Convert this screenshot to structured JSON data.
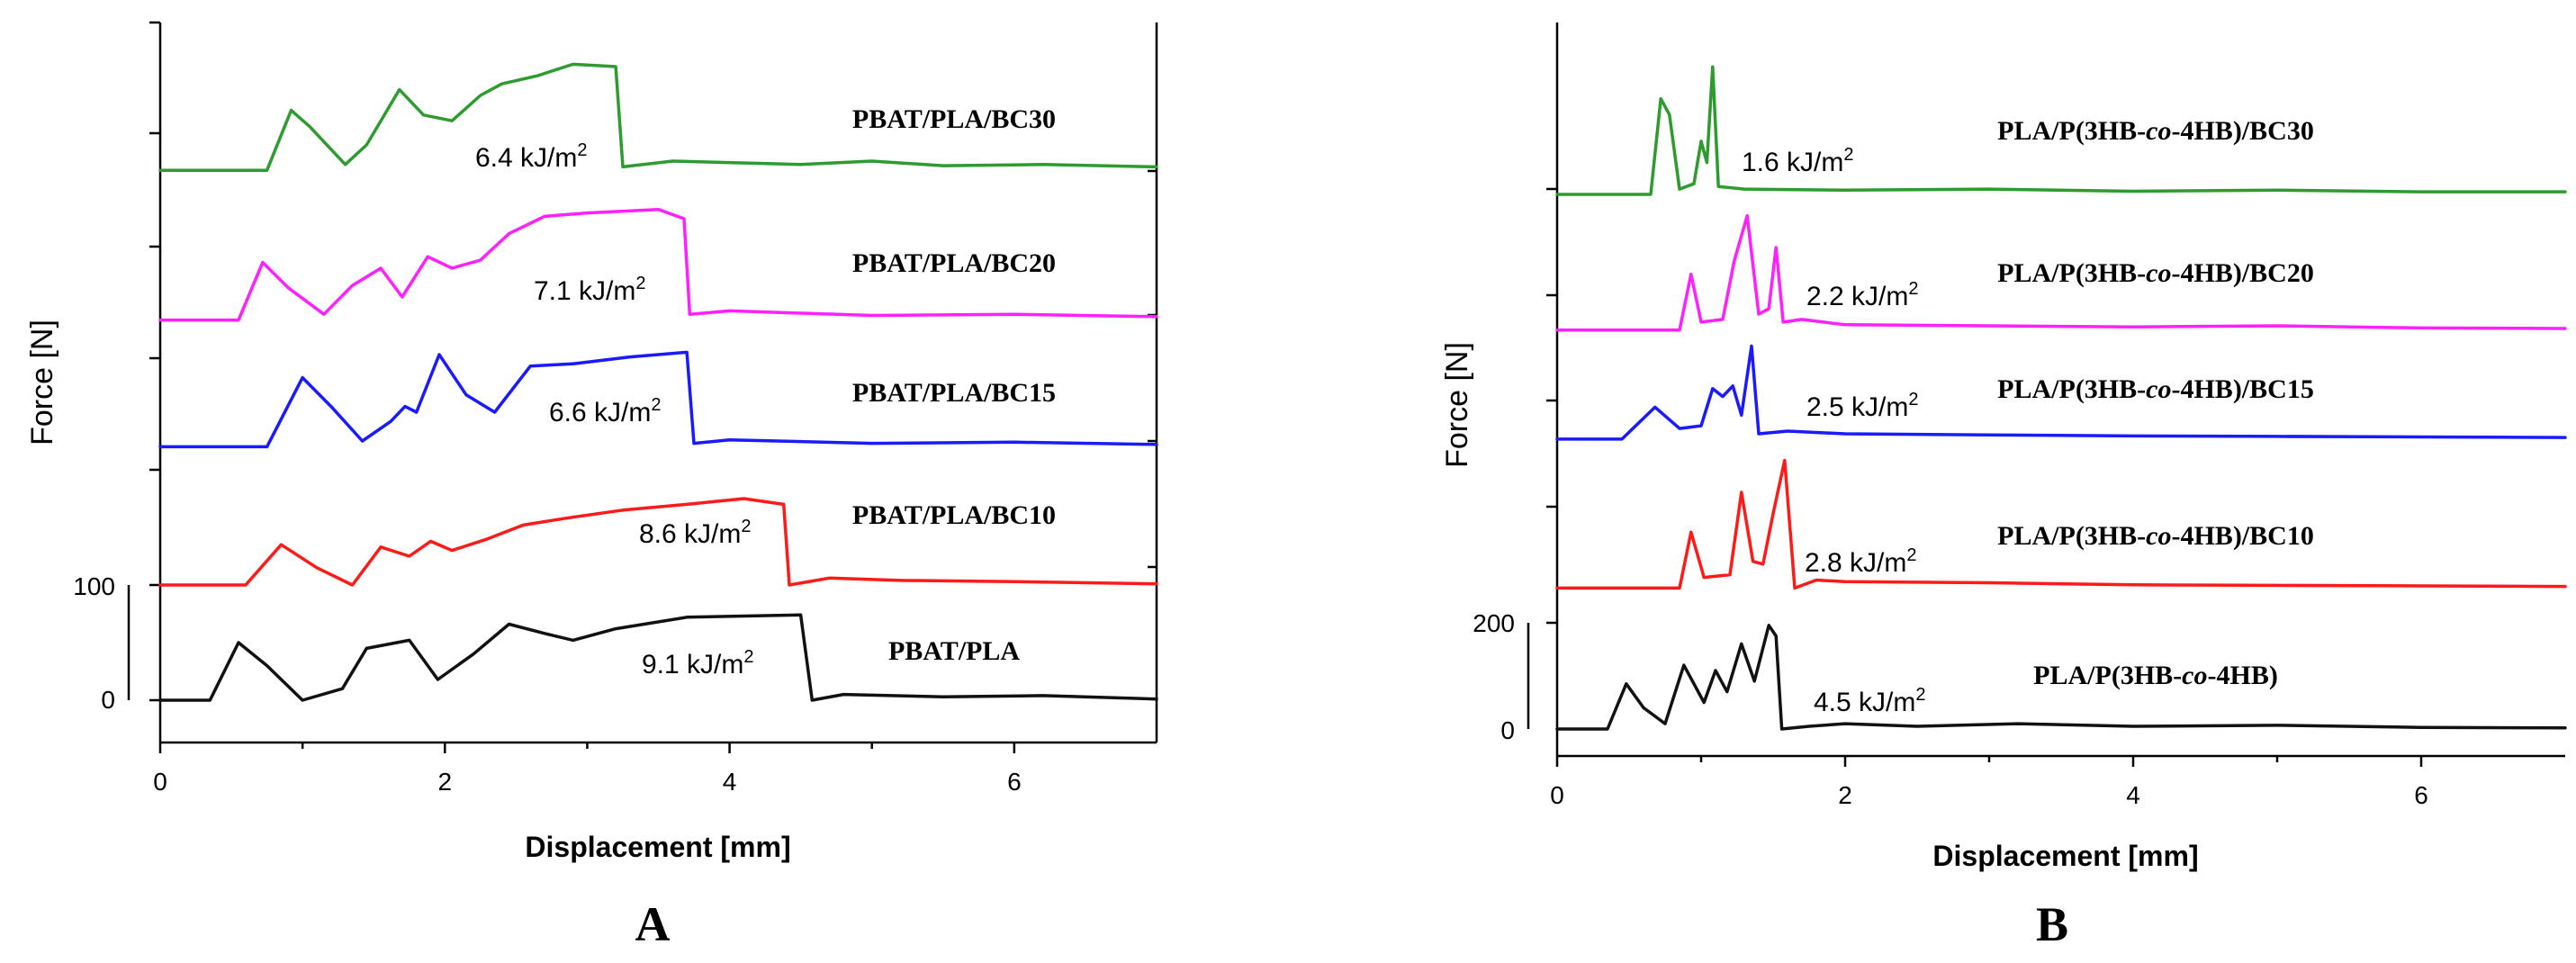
{
  "chart_data": [
    {
      "type": "line",
      "panel_label": "A",
      "xlabel": "Displacement [mm]",
      "ylabel": "Force [N]",
      "xlim": [
        0,
        7
      ],
      "x_ticks": [
        "0",
        "2",
        "4",
        "6"
      ],
      "scale_bar": {
        "low": "0",
        "high": "100",
        "value": 100
      },
      "series": [
        {
          "name": "PBAT/PLA/BC30",
          "energy": "6.4 kJ/m",
          "color": "#2e9b2e",
          "offset": 460,
          "points": [
            [
              0,
              0
            ],
            [
              0.75,
              0
            ],
            [
              0.92,
              52
            ],
            [
              1.05,
              38
            ],
            [
              1.3,
              5
            ],
            [
              1.45,
              22
            ],
            [
              1.68,
              70
            ],
            [
              1.85,
              48
            ],
            [
              2.05,
              43
            ],
            [
              2.25,
              65
            ],
            [
              2.4,
              75
            ],
            [
              2.65,
              82
            ],
            [
              2.9,
              92
            ],
            [
              3.2,
              90
            ],
            [
              3.25,
              3
            ],
            [
              3.6,
              8
            ],
            [
              4.5,
              5
            ],
            [
              5.0,
              8
            ],
            [
              5.5,
              4
            ],
            [
              6.2,
              5
            ],
            [
              7,
              3
            ]
          ]
        },
        {
          "name": "PBAT/PLA/BC20",
          "energy": "7.1 kJ/m",
          "color": "#ff20ff",
          "offset": 330,
          "points": [
            [
              0,
              0
            ],
            [
              0.55,
              0
            ],
            [
              0.72,
              50
            ],
            [
              0.9,
              28
            ],
            [
              1.15,
              5
            ],
            [
              1.35,
              30
            ],
            [
              1.55,
              45
            ],
            [
              1.7,
              20
            ],
            [
              1.88,
              55
            ],
            [
              2.05,
              45
            ],
            [
              2.25,
              52
            ],
            [
              2.45,
              75
            ],
            [
              2.7,
              90
            ],
            [
              3.0,
              93
            ],
            [
              3.5,
              96
            ],
            [
              3.68,
              88
            ],
            [
              3.72,
              5
            ],
            [
              4.0,
              8
            ],
            [
              5.0,
              4
            ],
            [
              6,
              5
            ],
            [
              7,
              3
            ]
          ]
        },
        {
          "name": "PBAT/PLA/BC15",
          "energy": "6.6 kJ/m",
          "color": "#1a1aff",
          "offset": 220,
          "points": [
            [
              0,
              0
            ],
            [
              0.75,
              0
            ],
            [
              1.0,
              60
            ],
            [
              1.2,
              35
            ],
            [
              1.42,
              5
            ],
            [
              1.62,
              22
            ],
            [
              1.72,
              35
            ],
            [
              1.8,
              30
            ],
            [
              1.96,
              80
            ],
            [
              2.15,
              45
            ],
            [
              2.35,
              30
            ],
            [
              2.6,
              70
            ],
            [
              2.9,
              72
            ],
            [
              3.3,
              78
            ],
            [
              3.7,
              82
            ],
            [
              3.75,
              3
            ],
            [
              4.0,
              6
            ],
            [
              5.0,
              3
            ],
            [
              6,
              4
            ],
            [
              7,
              2
            ]
          ]
        },
        {
          "name": "PBAT/PLA/BC10",
          "energy": "8.6 kJ/m",
          "color": "#ff1a1a",
          "offset": 100,
          "points": [
            [
              0,
              0
            ],
            [
              0.6,
              0
            ],
            [
              0.85,
              35
            ],
            [
              1.1,
              15
            ],
            [
              1.35,
              0
            ],
            [
              1.55,
              33
            ],
            [
              1.75,
              25
            ],
            [
              1.9,
              38
            ],
            [
              2.05,
              30
            ],
            [
              2.3,
              40
            ],
            [
              2.55,
              52
            ],
            [
              2.85,
              58
            ],
            [
              3.25,
              65
            ],
            [
              3.7,
              70
            ],
            [
              4.1,
              75
            ],
            [
              4.38,
              70
            ],
            [
              4.42,
              0
            ],
            [
              4.7,
              6
            ],
            [
              5.2,
              4
            ],
            [
              6,
              3
            ],
            [
              7,
              1
            ]
          ]
        },
        {
          "name": "PBAT/PLA",
          "energy": "9.1 kJ/m",
          "color": "#111111",
          "offset": 0,
          "points": [
            [
              0,
              0
            ],
            [
              0.35,
              0
            ],
            [
              0.55,
              50
            ],
            [
              0.75,
              30
            ],
            [
              1.0,
              0
            ],
            [
              1.28,
              10
            ],
            [
              1.45,
              45
            ],
            [
              1.75,
              52
            ],
            [
              1.95,
              18
            ],
            [
              2.2,
              40
            ],
            [
              2.45,
              66
            ],
            [
              2.7,
              58
            ],
            [
              2.9,
              52
            ],
            [
              3.2,
              62
            ],
            [
              3.7,
              72
            ],
            [
              4.5,
              74
            ],
            [
              4.58,
              0
            ],
            [
              4.8,
              5
            ],
            [
              5.5,
              3
            ],
            [
              6.2,
              4
            ],
            [
              7,
              1
            ]
          ]
        }
      ]
    },
    {
      "type": "line",
      "panel_label": "B",
      "xlabel": "Displacement [mm]",
      "ylabel": "Force [N]",
      "xlim": [
        0,
        7
      ],
      "x_ticks": [
        "0",
        "2",
        "4",
        "6"
      ],
      "scale_bar": {
        "low": "0",
        "high": "200",
        "value": 200
      },
      "series": [
        {
          "name": "PLA/P(3HB-co-4HB)/BC30",
          "energy": "1.6 kJ/m",
          "color": "#2e9b2e",
          "offset": 1005,
          "points": [
            [
              0,
              0
            ],
            [
              0.65,
              0
            ],
            [
              0.72,
              180
            ],
            [
              0.78,
              150
            ],
            [
              0.85,
              10
            ],
            [
              0.95,
              20
            ],
            [
              1.0,
              100
            ],
            [
              1.04,
              60
            ],
            [
              1.08,
              240
            ],
            [
              1.12,
              15
            ],
            [
              1.3,
              10
            ],
            [
              2.0,
              8
            ],
            [
              3,
              10
            ],
            [
              4,
              6
            ],
            [
              5,
              8
            ],
            [
              6,
              5
            ],
            [
              7,
              5
            ]
          ]
        },
        {
          "name": "PLA/P(3HB-co-4HB)/BC20",
          "energy": "2.2 kJ/m",
          "color": "#ff20ff",
          "offset": 750,
          "points": [
            [
              0,
              0
            ],
            [
              0.85,
              0
            ],
            [
              0.93,
              105
            ],
            [
              1.0,
              15
            ],
            [
              1.15,
              20
            ],
            [
              1.23,
              130
            ],
            [
              1.32,
              215
            ],
            [
              1.4,
              30
            ],
            [
              1.47,
              40
            ],
            [
              1.52,
              155
            ],
            [
              1.57,
              15
            ],
            [
              1.7,
              20
            ],
            [
              2,
              10
            ],
            [
              3,
              8
            ],
            [
              4,
              6
            ],
            [
              5,
              8
            ],
            [
              6,
              4
            ],
            [
              7,
              3
            ]
          ]
        },
        {
          "name": "PLA/P(3HB-co-4HB)/BC15",
          "energy": "2.5 kJ/m",
          "color": "#1a1aff",
          "offset": 545,
          "points": [
            [
              0,
              0
            ],
            [
              0.45,
              0
            ],
            [
              0.68,
              60
            ],
            [
              0.85,
              20
            ],
            [
              1.0,
              25
            ],
            [
              1.08,
              95
            ],
            [
              1.15,
              80
            ],
            [
              1.22,
              100
            ],
            [
              1.28,
              45
            ],
            [
              1.35,
              175
            ],
            [
              1.4,
              10
            ],
            [
              1.6,
              15
            ],
            [
              2,
              10
            ],
            [
              3,
              8
            ],
            [
              4,
              6
            ],
            [
              5,
              5
            ],
            [
              6,
              4
            ],
            [
              7,
              3
            ]
          ]
        },
        {
          "name": "PLA/P(3HB-co-4HB)/BC10",
          "energy": "2.8 kJ/m",
          "color": "#ff1a1a",
          "offset": 265,
          "points": [
            [
              0,
              0
            ],
            [
              0.85,
              0
            ],
            [
              0.93,
              105
            ],
            [
              1.02,
              20
            ],
            [
              1.2,
              25
            ],
            [
              1.28,
              180
            ],
            [
              1.36,
              50
            ],
            [
              1.43,
              45
            ],
            [
              1.5,
              140
            ],
            [
              1.58,
              240
            ],
            [
              1.65,
              0
            ],
            [
              1.8,
              15
            ],
            [
              2,
              12
            ],
            [
              3,
              10
            ],
            [
              4,
              6
            ],
            [
              5,
              5
            ],
            [
              6,
              4
            ],
            [
              7,
              3
            ]
          ]
        },
        {
          "name": "PLA/P(3HB-co-4HB)",
          "energy": "4.5 kJ/m",
          "color": "#111111",
          "offset": 0,
          "points": [
            [
              0,
              0
            ],
            [
              0.35,
              0
            ],
            [
              0.48,
              85
            ],
            [
              0.6,
              40
            ],
            [
              0.75,
              10
            ],
            [
              0.88,
              120
            ],
            [
              0.95,
              85
            ],
            [
              1.02,
              50
            ],
            [
              1.1,
              110
            ],
            [
              1.18,
              70
            ],
            [
              1.28,
              160
            ],
            [
              1.37,
              90
            ],
            [
              1.47,
              195
            ],
            [
              1.52,
              175
            ],
            [
              1.56,
              0
            ],
            [
              1.75,
              5
            ],
            [
              2.0,
              10
            ],
            [
              2.5,
              5
            ],
            [
              3.2,
              10
            ],
            [
              4,
              5
            ],
            [
              5,
              7
            ],
            [
              6,
              3
            ],
            [
              7,
              2
            ]
          ]
        }
      ]
    }
  ]
}
